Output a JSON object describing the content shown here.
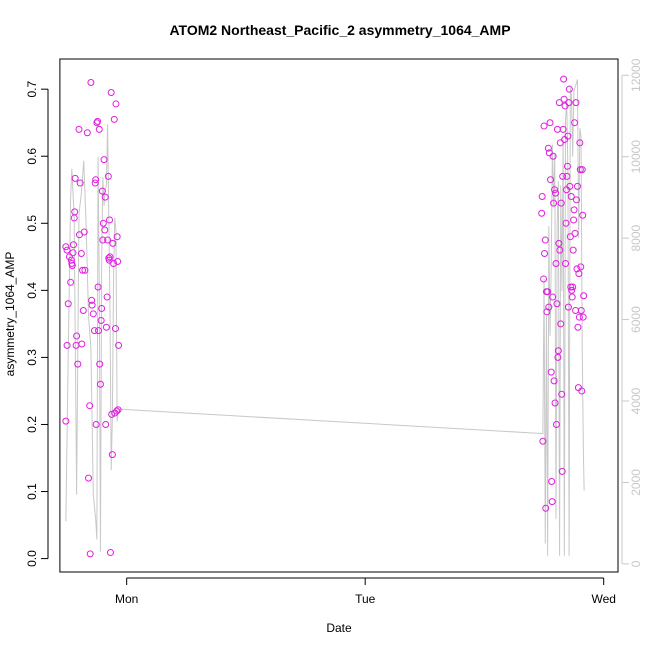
{
  "chart_data": {
    "type": "scatter",
    "title": "ATOM2 Northeast_Pacific_2 asymmetry_1064_AMP",
    "xlabel": "Date",
    "ylabel": "asymmetry_1064_AMP",
    "x_unit": "days since Mon 00:00",
    "xlim": [
      -0.28,
      2.06
    ],
    "ylim": [
      -0.02,
      0.745
    ],
    "y_ticks": [
      0.0,
      0.1,
      0.2,
      0.3,
      0.4,
      0.5,
      0.6,
      0.7
    ],
    "y_tick_labels": [
      "0.0",
      "0.1",
      "0.2",
      "0.3",
      "0.4",
      "0.5",
      "0.6",
      "0.7"
    ],
    "x_ticks": [
      0,
      1,
      2
    ],
    "x_tick_labels": [
      "Mon",
      "Tue",
      "Wed"
    ],
    "y2lim": [
      -200,
      12400
    ],
    "y2_ticks": [
      0,
      2000,
      4000,
      6000,
      8000,
      10000,
      12000
    ],
    "y2_tick_labels": [
      "0",
      "2000",
      "4000",
      "6000",
      "8000",
      "10000",
      "12000"
    ],
    "colors": {
      "points": "#e01ee0",
      "line": "#c8c8c8",
      "axis": "#000000",
      "right_axis": "#c8c8c8"
    },
    "series": [
      {
        "type": "scatter",
        "axis": "left",
        "points": [
          [
            -0.255,
            0.465
          ],
          [
            -0.255,
            0.205
          ],
          [
            -0.25,
            0.46
          ],
          [
            -0.25,
            0.318
          ],
          [
            -0.245,
            0.38
          ],
          [
            -0.24,
            0.45
          ],
          [
            -0.235,
            0.412
          ],
          [
            -0.232,
            0.445
          ],
          [
            -0.23,
            0.44
          ],
          [
            -0.228,
            0.437
          ],
          [
            -0.225,
            0.456
          ],
          [
            -0.223,
            0.468
          ],
          [
            -0.22,
            0.508
          ],
          [
            -0.218,
            0.517
          ],
          [
            -0.216,
            0.567
          ],
          [
            -0.212,
            0.318
          ],
          [
            -0.21,
            0.332
          ],
          [
            -0.205,
            0.29
          ],
          [
            -0.2,
            0.64
          ],
          [
            -0.198,
            0.483
          ],
          [
            -0.195,
            0.56
          ],
          [
            -0.19,
            0.455
          ],
          [
            -0.188,
            0.32
          ],
          [
            -0.185,
            0.43
          ],
          [
            -0.182,
            0.37
          ],
          [
            -0.178,
            0.487
          ],
          [
            -0.175,
            0.43
          ],
          [
            -0.165,
            0.635
          ],
          [
            -0.16,
            0.12
          ],
          [
            -0.155,
            0.228
          ],
          [
            -0.153,
            0.007
          ],
          [
            -0.15,
            0.71
          ],
          [
            -0.147,
            0.385
          ],
          [
            -0.145,
            0.378
          ],
          [
            -0.14,
            0.365
          ],
          [
            -0.135,
            0.34
          ],
          [
            -0.132,
            0.56
          ],
          [
            -0.13,
            0.565
          ],
          [
            -0.128,
            0.2
          ],
          [
            -0.125,
            0.65
          ],
          [
            -0.122,
            0.652
          ],
          [
            -0.12,
            0.405
          ],
          [
            -0.118,
            0.34
          ],
          [
            -0.115,
            0.64
          ],
          [
            -0.113,
            0.29
          ],
          [
            -0.11,
            0.26
          ],
          [
            -0.107,
            0.355
          ],
          [
            -0.105,
            0.373
          ],
          [
            -0.102,
            0.548
          ],
          [
            -0.1,
            0.475
          ],
          [
            -0.098,
            0.5
          ],
          [
            -0.095,
            0.595
          ],
          [
            -0.092,
            0.49
          ],
          [
            -0.09,
            0.539
          ],
          [
            -0.088,
            0.2
          ],
          [
            -0.085,
            0.345
          ],
          [
            -0.082,
            0.39
          ],
          [
            -0.08,
            0.475
          ],
          [
            -0.077,
            0.57
          ],
          [
            -0.075,
            0.448
          ],
          [
            -0.073,
            0.445
          ],
          [
            -0.072,
            0.505
          ],
          [
            -0.07,
            0.45
          ],
          [
            -0.068,
            0.009
          ],
          [
            -0.065,
            0.695
          ],
          [
            -0.063,
            0.215
          ],
          [
            -0.06,
            0.155
          ],
          [
            -0.058,
            0.47
          ],
          [
            -0.055,
            0.44
          ],
          [
            -0.052,
            0.655
          ],
          [
            -0.05,
            0.217
          ],
          [
            -0.047,
            0.343
          ],
          [
            -0.045,
            0.678
          ],
          [
            -0.042,
            0.22
          ],
          [
            -0.04,
            0.48
          ],
          [
            -0.038,
            0.443
          ],
          [
            -0.036,
            0.222
          ],
          [
            -0.034,
            0.318
          ],
          [
            1.74,
            0.515
          ],
          [
            1.742,
            0.54
          ],
          [
            1.745,
            0.175
          ],
          [
            1.748,
            0.417
          ],
          [
            1.75,
            0.645
          ],
          [
            1.752,
            0.455
          ],
          [
            1.755,
            0.475
          ],
          [
            1.757,
            0.075
          ],
          [
            1.76,
            0.398
          ],
          [
            1.762,
            0.368
          ],
          [
            1.765,
            0.398
          ],
          [
            1.768,
            0.612
          ],
          [
            1.77,
            0.375
          ],
          [
            1.772,
            0.605
          ],
          [
            1.775,
            0.65
          ],
          [
            1.777,
            0.565
          ],
          [
            1.78,
            0.278
          ],
          [
            1.782,
            0.115
          ],
          [
            1.784,
            0.085
          ],
          [
            1.786,
            0.39
          ],
          [
            1.788,
            0.6
          ],
          [
            1.79,
            0.53
          ],
          [
            1.792,
            0.265
          ],
          [
            1.794,
            0.55
          ],
          [
            1.796,
            0.232
          ],
          [
            1.798,
            0.545
          ],
          [
            1.8,
            0.44
          ],
          [
            1.802,
            0.2
          ],
          [
            1.804,
            0.38
          ],
          [
            1.806,
            0.64
          ],
          [
            1.808,
            0.3
          ],
          [
            1.81,
            0.31
          ],
          [
            1.812,
            0.47
          ],
          [
            1.814,
            0.68
          ],
          [
            1.816,
            0.46
          ],
          [
            1.818,
            0.62
          ],
          [
            1.82,
            0.35
          ],
          [
            1.822,
            0.53
          ],
          [
            1.824,
            0.245
          ],
          [
            1.826,
            0.13
          ],
          [
            1.828,
            0.57
          ],
          [
            1.83,
            0.64
          ],
          [
            1.832,
            0.715
          ],
          [
            1.834,
            0.685
          ],
          [
            1.836,
            0.625
          ],
          [
            1.838,
            0.675
          ],
          [
            1.84,
            0.44
          ],
          [
            1.842,
            0.5
          ],
          [
            1.844,
            0.55
          ],
          [
            1.846,
            0.57
          ],
          [
            1.848,
            0.585
          ],
          [
            1.85,
            0.63
          ],
          [
            1.852,
            0.375
          ],
          [
            1.854,
            0.68
          ],
          [
            1.856,
            0.7
          ],
          [
            1.858,
            0.555
          ],
          [
            1.86,
            0.48
          ],
          [
            1.862,
            0.405
          ],
          [
            1.864,
            0.54
          ],
          [
            1.866,
            0.4
          ],
          [
            1.868,
            0.39
          ],
          [
            1.87,
            0.405
          ],
          [
            1.872,
            0.46
          ],
          [
            1.874,
            0.505
          ],
          [
            1.876,
            0.52
          ],
          [
            1.878,
            0.65
          ],
          [
            1.88,
            0.485
          ],
          [
            1.882,
            0.37
          ],
          [
            1.884,
            0.68
          ],
          [
            1.886,
            0.535
          ],
          [
            1.888,
            0.432
          ],
          [
            1.89,
            0.555
          ],
          [
            1.892,
            0.345
          ],
          [
            1.894,
            0.255
          ],
          [
            1.896,
            0.425
          ],
          [
            1.898,
            0.36
          ],
          [
            1.9,
            0.62
          ],
          [
            1.902,
            0.58
          ],
          [
            1.904,
            0.435
          ],
          [
            1.906,
            0.37
          ],
          [
            1.908,
            0.25
          ],
          [
            1.91,
            0.58
          ],
          [
            1.912,
            0.512
          ],
          [
            1.914,
            0.36
          ],
          [
            1.916,
            0.392
          ]
        ]
      },
      {
        "type": "line",
        "axis": "right",
        "points": [
          [
            -0.255,
            1050
          ],
          [
            -0.245,
            5200
          ],
          [
            -0.235,
            9000
          ],
          [
            -0.23,
            9700
          ],
          [
            -0.22,
            8500
          ],
          [
            -0.21,
            1700
          ],
          [
            -0.2,
            8600
          ],
          [
            -0.19,
            9100
          ],
          [
            -0.18,
            9900
          ],
          [
            -0.17,
            8300
          ],
          [
            -0.16,
            6100
          ],
          [
            -0.15,
            5300
          ],
          [
            -0.14,
            1700
          ],
          [
            -0.13,
            1100
          ],
          [
            -0.125,
            600
          ],
          [
            -0.12,
            10000
          ],
          [
            -0.115,
            7000
          ],
          [
            -0.11,
            300
          ],
          [
            -0.105,
            7300
          ],
          [
            -0.1,
            9500
          ],
          [
            -0.095,
            8800
          ],
          [
            -0.09,
            9200
          ],
          [
            -0.085,
            9300
          ],
          [
            -0.08,
            10800
          ],
          [
            -0.075,
            8500
          ],
          [
            -0.07,
            6300
          ],
          [
            -0.065,
            2300
          ],
          [
            -0.06,
            3600
          ],
          [
            -0.055,
            7000
          ],
          [
            -0.05,
            8500
          ],
          [
            -0.045,
            8200
          ],
          [
            -0.04,
            3500
          ],
          [
            -0.034,
            3800
          ],
          [
            1.745,
            3200
          ],
          [
            1.75,
            7000
          ],
          [
            1.755,
            500
          ],
          [
            1.76,
            6100
          ],
          [
            1.765,
            200
          ],
          [
            1.77,
            8300
          ],
          [
            1.775,
            5600
          ],
          [
            1.78,
            7300
          ],
          [
            1.785,
            10300
          ],
          [
            1.79,
            8800
          ],
          [
            1.795,
            10100
          ],
          [
            1.8,
            1100
          ],
          [
            1.805,
            8300
          ],
          [
            1.81,
            9400
          ],
          [
            1.815,
            200
          ],
          [
            1.82,
            9300
          ],
          [
            1.825,
            6700
          ],
          [
            1.83,
            10500
          ],
          [
            1.835,
            200
          ],
          [
            1.84,
            10900
          ],
          [
            1.845,
            11400
          ],
          [
            1.85,
            9600
          ],
          [
            1.855,
            200
          ],
          [
            1.86,
            11700
          ],
          [
            1.865,
            11500
          ],
          [
            1.87,
            10000
          ],
          [
            1.875,
            11600
          ],
          [
            1.88,
            11700
          ],
          [
            1.885,
            11800
          ],
          [
            1.89,
            11900
          ],
          [
            1.895,
            8000
          ],
          [
            1.9,
            10700
          ],
          [
            1.905,
            10500
          ],
          [
            1.91,
            5300
          ],
          [
            1.915,
            2700
          ],
          [
            1.918,
            1800
          ]
        ]
      }
    ]
  }
}
